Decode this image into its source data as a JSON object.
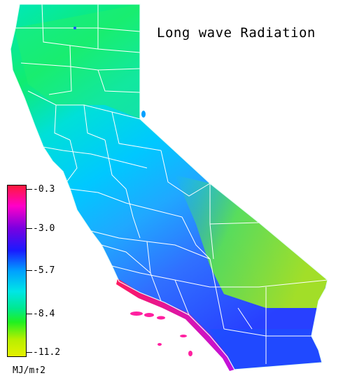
{
  "title": "Long wave Radiation",
  "legend": {
    "labels": [
      "-0.3",
      "-3.0",
      "-5.7",
      "-8.4",
      "-11.2"
    ],
    "units": "MJ/m↑2",
    "gradient_colors": [
      "#ff1a3c",
      "#ff00c8",
      "#7a00e0",
      "#1a1aff",
      "#00a0ff",
      "#00e6e6",
      "#00e890",
      "#20f020",
      "#b6ef00",
      "#e6f000"
    ]
  },
  "map": {
    "region": "California",
    "boundaries": "county lines"
  }
}
